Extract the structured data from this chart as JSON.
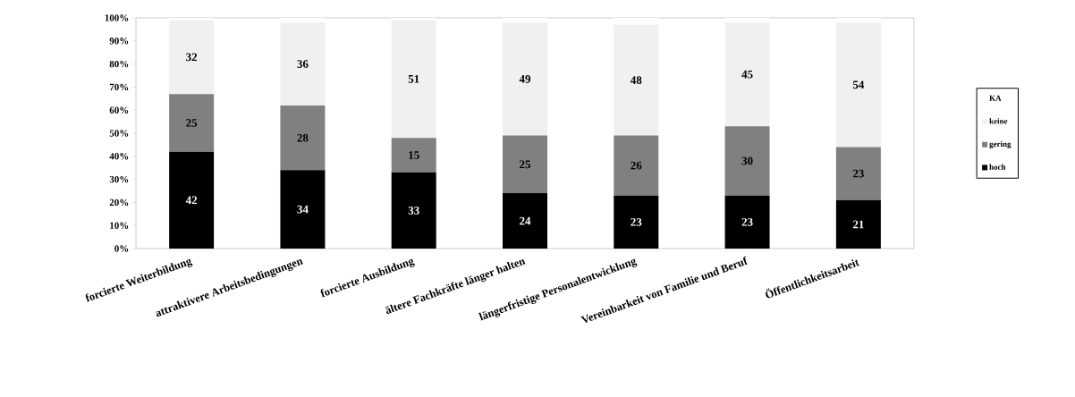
{
  "chart_data": {
    "type": "bar",
    "stacked": true,
    "categories": [
      "forcierte Weiterbildung",
      "attraktivere Arbeitsbedingungen",
      "forcierte Ausbildung",
      "ältere Fachkräfte länger halten",
      "längerfristige Personalentwicklung",
      "Vereinbarkeit von Familie und Beruf",
      "Öffentlichkeitsarbeit"
    ],
    "series": [
      {
        "name": "hoch",
        "color": "#000000",
        "values": [
          42,
          34,
          33,
          24,
          23,
          23,
          21
        ],
        "value_labels": [
          "42",
          "34",
          "33",
          "24",
          "23",
          "23",
          "21"
        ]
      },
      {
        "name": "gering",
        "color": "#808080",
        "values": [
          25,
          28,
          15,
          25,
          26,
          30,
          23
        ],
        "value_labels": [
          "25",
          "28",
          "15",
          "25",
          "26",
          "30",
          "23"
        ]
      },
      {
        "name": "keine",
        "color": "#f0f0f0",
        "values": [
          32,
          36,
          51,
          49,
          48,
          45,
          54
        ],
        "value_labels": [
          "32",
          "36",
          "51",
          "49",
          "48",
          "45",
          "54"
        ]
      },
      {
        "name": "KA",
        "color": "#ffffff",
        "values": [
          1,
          2,
          1,
          2,
          3,
          2,
          2
        ]
      }
    ],
    "ylim": [
      0,
      100
    ],
    "yticks": [
      {
        "value": 0,
        "label": "0%"
      },
      {
        "value": 10,
        "label": "10%"
      },
      {
        "value": 20,
        "label": "20%"
      },
      {
        "value": 30,
        "label": "30%"
      },
      {
        "value": 40,
        "label": "40%"
      },
      {
        "value": 50,
        "label": "50%"
      },
      {
        "value": 60,
        "label": "60%"
      },
      {
        "value": 70,
        "label": "70%"
      },
      {
        "value": 80,
        "label": "80%"
      },
      {
        "value": 90,
        "label": "90%"
      },
      {
        "value": 100,
        "label": "100%"
      }
    ],
    "legend": "right"
  }
}
